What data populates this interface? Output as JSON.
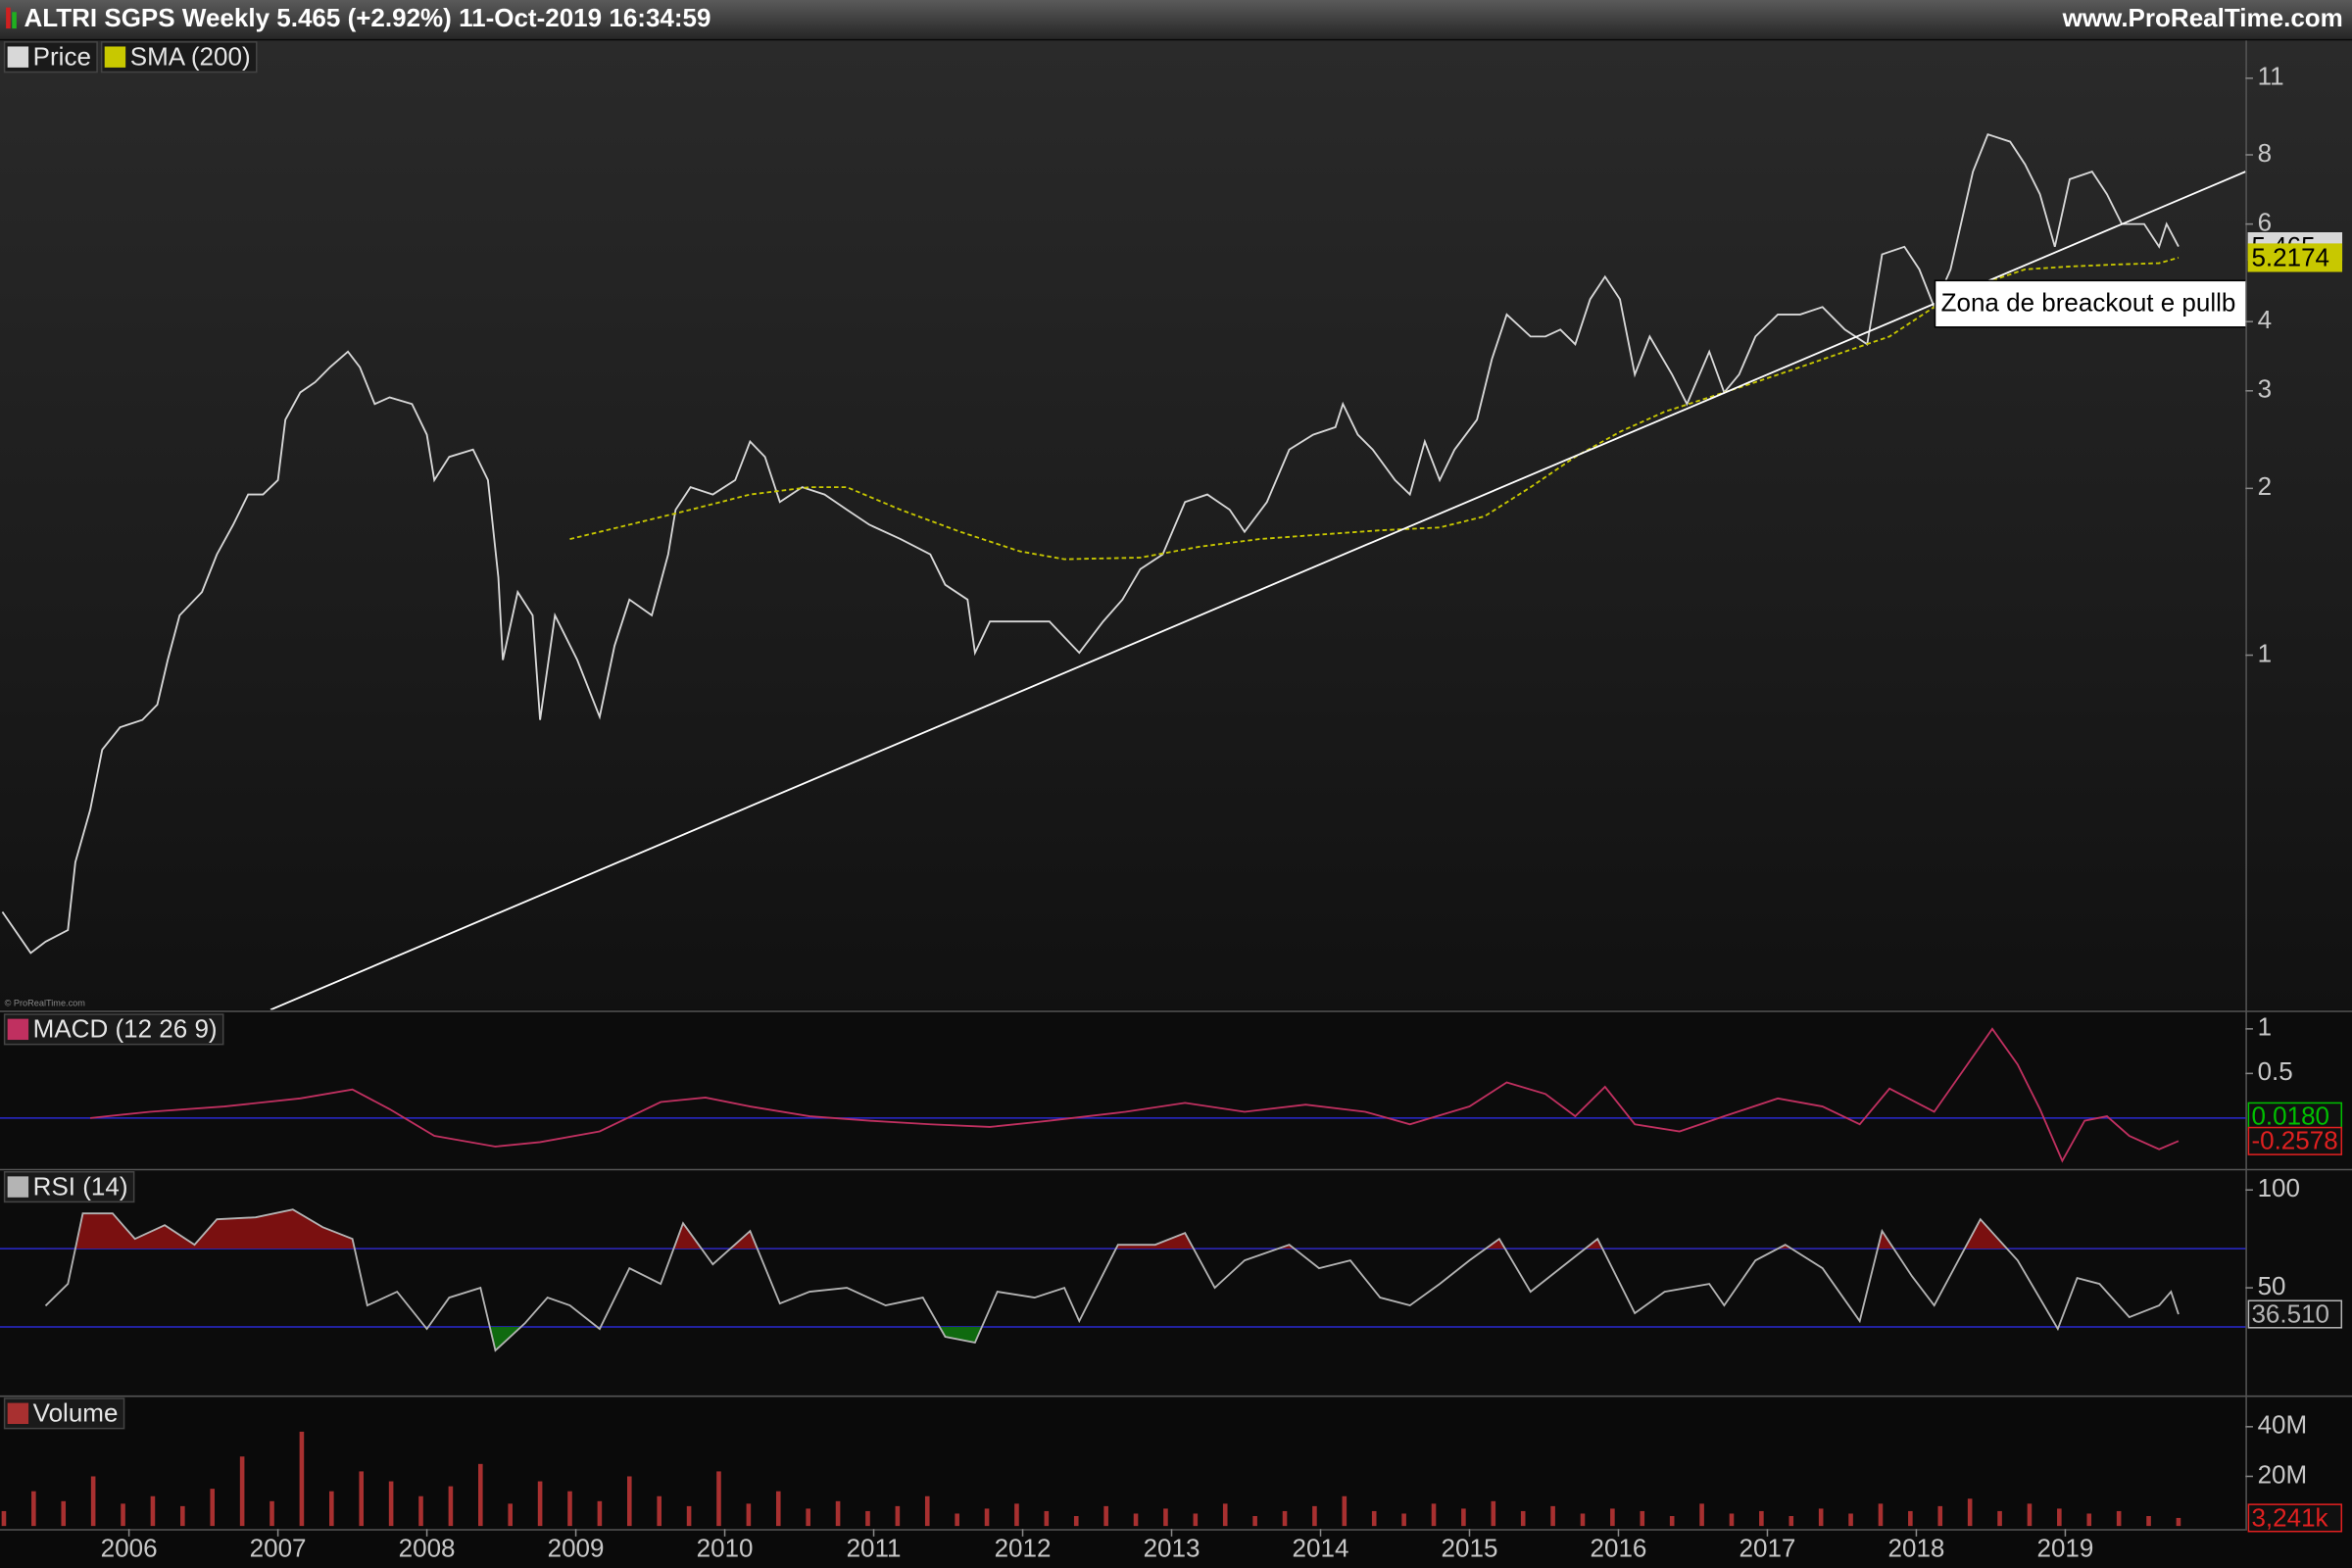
{
  "header": {
    "title": "ALTRI SGPS Weekly 5.465 (+2.92%) 11-Oct-2019 16:34:59",
    "site": "www.ProRealTime.com",
    "watermark": "© ProRealTime.com"
  },
  "chart_data": [
    {
      "type": "line",
      "log_scale": true,
      "xlim": [
        2005.134,
        2020.21
      ],
      "ylim": [
        0.229,
        11.5
      ],
      "yticks": [
        1,
        2,
        3,
        4,
        6,
        8,
        11
      ],
      "series": [
        {
          "name": "Price",
          "color": "#d8d8d8",
          "x": [
            2005.15,
            2005.34,
            2005.44,
            2005.59,
            2005.64,
            2005.74,
            2005.82,
            2005.94,
            2006.09,
            2006.19,
            2006.26,
            2006.34,
            2006.49,
            2006.59,
            2006.7,
            2006.8,
            2006.9,
            2007,
            2007.05,
            2007.15,
            2007.25,
            2007.35,
            2007.47,
            2007.55,
            2007.65,
            2007.75,
            2007.9,
            2008,
            2008.05,
            2008.15,
            2008.31,
            2008.41,
            2008.48,
            2008.51,
            2008.61,
            2008.71,
            2008.76,
            2008.86,
            2009.01,
            2009.16,
            2009.26,
            2009.36,
            2009.51,
            2009.62,
            2009.67,
            2009.77,
            2009.92,
            2010.07,
            2010.17,
            2010.27,
            2010.37,
            2010.52,
            2010.67,
            2010.82,
            2010.97,
            2011.18,
            2011.38,
            2011.48,
            2011.63,
            2011.68,
            2011.78,
            2011.98,
            2012.18,
            2012.38,
            2012.54,
            2012.67,
            2012.79,
            2012.94,
            2013.09,
            2013.24,
            2013.39,
            2013.49,
            2013.64,
            2013.79,
            2013.95,
            2014.1,
            2014.15,
            2014.25,
            2014.35,
            2014.5,
            2014.6,
            2014.7,
            2014.8,
            2014.9,
            2015.05,
            2015.15,
            2015.25,
            2015.41,
            2015.51,
            2015.61,
            2015.71,
            2015.81,
            2015.91,
            2016.01,
            2016.11,
            2016.21,
            2016.36,
            2016.46,
            2016.61,
            2016.71,
            2016.81,
            2016.92,
            2017.07,
            2017.22,
            2017.37,
            2017.52,
            2017.67,
            2017.77,
            2017.92,
            2018.02,
            2018.12,
            2018.23,
            2018.38,
            2018.48,
            2018.63,
            2018.73,
            2018.83,
            2018.93,
            2019.03,
            2019.18,
            2019.28,
            2019.38,
            2019.53,
            2019.63,
            2019.68,
            2019.76
          ],
          "values": [
            0.344,
            0.29,
            0.304,
            0.319,
            0.423,
            0.526,
            0.675,
            0.741,
            0.764,
            0.814,
            0.98,
            1.18,
            1.3,
            1.52,
            1.72,
            1.95,
            1.95,
            2.07,
            2.66,
            2.98,
            3.11,
            3.31,
            3.53,
            3.31,
            2.84,
            2.92,
            2.84,
            2.5,
            2.07,
            2.28,
            2.35,
            2.07,
            1.38,
            0.98,
            1.3,
            1.18,
            0.764,
            1.18,
            0.98,
            0.774,
            1.04,
            1.26,
            1.18,
            1.52,
            1.83,
            2.01,
            1.95,
            2.07,
            2.43,
            2.28,
            1.89,
            2.01,
            1.95,
            1.83,
            1.72,
            1.62,
            1.52,
            1.34,
            1.26,
            1.01,
            1.15,
            1.15,
            1.15,
            1.01,
            1.15,
            1.26,
            1.43,
            1.52,
            1.89,
            1.95,
            1.83,
            1.67,
            1.89,
            2.35,
            2.5,
            2.58,
            2.84,
            2.5,
            2.35,
            2.07,
            1.95,
            2.43,
            2.07,
            2.35,
            2.66,
            3.42,
            4.12,
            3.76,
            3.76,
            3.87,
            3.64,
            4.39,
            4.82,
            4.39,
            3.21,
            3.76,
            3.21,
            2.84,
            3.53,
            2.98,
            3.21,
            3.76,
            4.12,
            4.12,
            4.25,
            3.87,
            3.64,
            5.29,
            5.46,
            4.97,
            4.25,
            4.97,
            7.46,
            8.71,
            8.45,
            7.69,
            6.79,
            5.46,
            7.23,
            7.46,
            6.79,
            6,
            6,
            5.46,
            6,
            5.465
          ]
        },
        {
          "name": "SMA (200)",
          "color": "#c8c800",
          "x": [
            2008.96,
            2009.36,
            2009.77,
            2010.17,
            2010.57,
            2010.82,
            2011.18,
            2011.58,
            2011.98,
            2012.28,
            2012.79,
            2013.19,
            2013.59,
            2013.99,
            2014.4,
            2014.8,
            2015.1,
            2015.41,
            2015.71,
            2016.01,
            2016.31,
            2016.61,
            2016.92,
            2017.22,
            2017.52,
            2017.82,
            2018.12,
            2018.43,
            2018.73,
            2019.03,
            2019.33,
            2019.63,
            2019.76
          ],
          "values": [
            1.62,
            1.72,
            1.83,
            1.95,
            2.01,
            2.01,
            1.83,
            1.67,
            1.54,
            1.49,
            1.5,
            1.57,
            1.62,
            1.65,
            1.68,
            1.7,
            1.78,
            2.01,
            2.28,
            2.53,
            2.75,
            2.92,
            3.11,
            3.31,
            3.53,
            3.76,
            4.25,
            4.67,
            4.97,
            5.03,
            5.07,
            5.1,
            5.2174
          ]
        }
      ],
      "trendline": {
        "color": "#ffffff",
        "x": [
          2006.95,
          2020.21
        ],
        "values": [
          0.229,
          7.46
        ]
      },
      "annotation": "Zona de breackout e pullb"
    },
    {
      "type": "line",
      "xlim": [
        2005.134,
        2020.21
      ],
      "ylim": [
        -0.57,
        1.18
      ],
      "yticks": [
        0.5,
        1
      ],
      "levels": [
        0
      ],
      "series": [
        {
          "name": "MACD (12 26 9)",
          "color": "#c03060",
          "x": [
            2005.74,
            2006.14,
            2006.64,
            2007.15,
            2007.5,
            2007.75,
            2008.05,
            2008.46,
            2008.76,
            2009.16,
            2009.57,
            2009.87,
            2010.17,
            2010.57,
            2010.97,
            2011.38,
            2011.78,
            2012.18,
            2012.69,
            2013.09,
            2013.49,
            2013.9,
            2014.3,
            2014.6,
            2015,
            2015.25,
            2015.51,
            2015.71,
            2015.91,
            2016.11,
            2016.41,
            2016.71,
            2017.07,
            2017.37,
            2017.62,
            2017.82,
            2018.12,
            2018.33,
            2018.51,
            2018.68,
            2018.83,
            2018.98,
            2019.13,
            2019.28,
            2019.43,
            2019.63,
            2019.76
          ],
          "values": [
            0,
            0.07,
            0.13,
            0.22,
            0.32,
            0.1,
            -0.2,
            -0.32,
            -0.27,
            -0.15,
            0.18,
            0.23,
            0.13,
            0.02,
            -0.03,
            -0.07,
            -0.1,
            -0.03,
            0.07,
            0.17,
            0.07,
            0.15,
            0.07,
            -0.07,
            0.13,
            0.4,
            0.27,
            0.02,
            0.35,
            -0.07,
            -0.15,
            0.02,
            0.22,
            0.13,
            -0.07,
            0.33,
            0.07,
            0.57,
            1,
            0.6,
            0.1,
            -0.48,
            -0.03,
            0.02,
            -0.2,
            -0.35,
            -0.2578
          ]
        }
      ],
      "markers": [
        {
          "value": 0.018,
          "label": "0.0180",
          "color": "#00c000"
        },
        {
          "value": -0.2578,
          "label": "-0.2578",
          "color": "#e02020"
        }
      ]
    },
    {
      "type": "line",
      "xlim": [
        2005.134,
        2020.21
      ],
      "ylim": [
        -5,
        110
      ],
      "yticks": [
        50,
        100
      ],
      "levels": [
        30,
        70
      ],
      "fill_below": "#0f6a0f",
      "fill_above": "#7a1010",
      "series": [
        {
          "name": "RSI (14)",
          "color": "#b4b4b4",
          "x": [
            2005.44,
            2005.59,
            2005.69,
            2005.89,
            2006.04,
            2006.24,
            2006.44,
            2006.59,
            2006.85,
            2007.1,
            2007.3,
            2007.5,
            2007.6,
            2007.8,
            2008,
            2008.15,
            2008.36,
            2008.46,
            2008.66,
            2008.81,
            2008.96,
            2009.16,
            2009.36,
            2009.57,
            2009.72,
            2009.92,
            2010.17,
            2010.37,
            2010.57,
            2010.82,
            2011.08,
            2011.33,
            2011.48,
            2011.68,
            2011.83,
            2012.08,
            2012.28,
            2012.38,
            2012.64,
            2012.89,
            2013.09,
            2013.29,
            2013.49,
            2013.79,
            2013.99,
            2014.2,
            2014.4,
            2014.6,
            2014.8,
            2015,
            2015.2,
            2015.41,
            2015.61,
            2015.86,
            2016.11,
            2016.31,
            2016.61,
            2016.71,
            2016.92,
            2017.12,
            2017.37,
            2017.62,
            2017.77,
            2017.97,
            2018.12,
            2018.43,
            2018.68,
            2018.95,
            2019.08,
            2019.23,
            2019.43,
            2019.63,
            2019.71,
            2019.76
          ],
          "values": [
            40.8,
            52,
            88,
            88,
            75,
            82,
            72,
            85,
            86,
            90,
            81,
            75,
            41,
            48,
            29,
            45,
            50,
            18,
            32,
            45,
            41,
            29,
            60,
            52,
            83,
            62,
            79,
            42,
            48,
            50,
            41,
            45,
            25,
            22,
            48,
            45,
            50,
            33,
            72,
            72,
            78,
            50,
            64,
            72,
            60,
            64,
            45,
            41,
            52,
            64,
            75,
            48,
            60,
            75,
            37,
            48,
            52,
            41,
            64,
            72,
            60,
            33,
            79,
            56,
            41,
            85,
            64,
            29,
            55,
            52,
            35,
            41,
            48,
            36.51
          ]
        }
      ],
      "markers": [
        {
          "value": 36.51,
          "label": "36.510",
          "color": "#b4b4b4"
        }
      ]
    },
    {
      "type": "bar",
      "xlim": [
        2005.134,
        2020.21
      ],
      "ylim": [
        0,
        52000000
      ],
      "xticks": [
        2006,
        2007,
        2008,
        2009,
        2010,
        2011,
        2012,
        2013,
        2014,
        2015,
        2016,
        2017,
        2018,
        2019
      ],
      "yticks": [
        {
          "value": 20000000,
          "label": "20M"
        },
        {
          "value": 40000000,
          "label": "40M"
        }
      ],
      "series": [
        {
          "name": "Volume",
          "color": "#a83030",
          "x": [
            2005.16,
            2005.36,
            2005.56,
            2005.76,
            2005.96,
            2006.16,
            2006.36,
            2006.56,
            2006.76,
            2006.96,
            2007.16,
            2007.36,
            2007.56,
            2007.76,
            2007.96,
            2008.16,
            2008.36,
            2008.56,
            2008.76,
            2008.96,
            2009.16,
            2009.36,
            2009.56,
            2009.76,
            2009.96,
            2010.16,
            2010.36,
            2010.56,
            2010.76,
            2010.96,
            2011.16,
            2011.36,
            2011.56,
            2011.76,
            2011.96,
            2012.16,
            2012.36,
            2012.56,
            2012.76,
            2012.96,
            2013.16,
            2013.36,
            2013.56,
            2013.76,
            2013.96,
            2014.16,
            2014.36,
            2014.56,
            2014.76,
            2014.96,
            2015.16,
            2015.36,
            2015.56,
            2015.76,
            2015.96,
            2016.16,
            2016.36,
            2016.56,
            2016.76,
            2016.96,
            2017.16,
            2017.36,
            2017.56,
            2017.76,
            2017.96,
            2018.16,
            2018.36,
            2018.56,
            2018.76,
            2018.96,
            2019.16,
            2019.36,
            2019.56,
            2019.76
          ],
          "values": [
            6000000,
            14000000,
            10000000,
            20000000,
            9000000,
            12000000,
            8000000,
            15000000,
            28000000,
            10000000,
            38000000,
            14000000,
            22000000,
            18000000,
            12000000,
            16000000,
            25000000,
            9000000,
            18000000,
            14000000,
            10000000,
            20000000,
            12000000,
            8000000,
            22000000,
            9000000,
            14000000,
            7000000,
            10000000,
            6000000,
            8000000,
            12000000,
            5000000,
            7000000,
            9000000,
            6000000,
            4000000,
            8000000,
            5000000,
            7000000,
            5000000,
            9000000,
            4000000,
            6000000,
            8000000,
            12000000,
            6000000,
            5000000,
            9000000,
            7000000,
            10000000,
            6000000,
            8000000,
            5000000,
            7000000,
            6000000,
            4000000,
            9000000,
            5000000,
            6000000,
            4000000,
            7000000,
            5000000,
            9000000,
            6000000,
            8000000,
            11000000,
            6000000,
            9000000,
            7000000,
            5000000,
            6000000,
            4000000,
            3241000
          ]
        }
      ],
      "markers": [
        {
          "value": 3241000,
          "label": "3,241k",
          "color": "#e02020"
        }
      ]
    }
  ]
}
